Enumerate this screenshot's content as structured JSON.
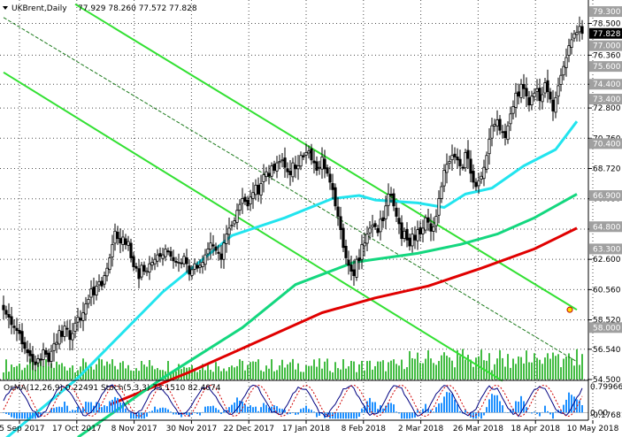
{
  "header": {
    "symbol": "UKBrent,Daily",
    "ohlc": "77.929 78.260 77.572 77.828"
  },
  "chart_data": {
    "type": "candlestick",
    "price_range": [
      54.5,
      79.96
    ],
    "price_ticks": [
      {
        "label": "78.500",
        "value": 78.5
      },
      {
        "label": "76.360",
        "value": 76.36
      },
      {
        "label": "74.400",
        "value": 74.4
      },
      {
        "label": "72.800",
        "value": 72.8
      },
      {
        "label": "70.760",
        "value": 70.76
      },
      {
        "label": "68.720",
        "value": 68.72
      },
      {
        "label": "66.680",
        "value": 66.68
      },
      {
        "label": "64.640",
        "value": 64.64
      },
      {
        "label": "62.600",
        "value": 62.6
      },
      {
        "label": "60.560",
        "value": 60.56
      },
      {
        "label": "58.520",
        "value": 58.52
      },
      {
        "label": "56.540",
        "value": 56.54
      },
      {
        "label": "54.500",
        "value": 54.5
      }
    ],
    "price_labels": [
      {
        "label": "79.300",
        "value": 79.3,
        "color": "#a0a0a0"
      },
      {
        "label": "77.828",
        "value": 77.828,
        "color": "#000000"
      },
      {
        "label": "77.000",
        "value": 77.0,
        "color": "#a0a0a0"
      },
      {
        "label": "75.600",
        "value": 75.6,
        "color": "#a0a0a0"
      },
      {
        "label": "74.400",
        "value": 74.4,
        "color": "#a0a0a0"
      },
      {
        "label": "73.400",
        "value": 73.4,
        "color": "#a0a0a0"
      },
      {
        "label": "70.400",
        "value": 70.4,
        "color": "#a0a0a0"
      },
      {
        "label": "66.900",
        "value": 66.9,
        "color": "#a0a0a0"
      },
      {
        "label": "64.800",
        "value": 64.8,
        "color": "#a0a0a0"
      },
      {
        "label": "63.300",
        "value": 63.3,
        "color": "#a0a0a0"
      },
      {
        "label": "58.000",
        "value": 58.0,
        "color": "#a0a0a0"
      }
    ],
    "x_labels": [
      "25 Sep 2017",
      "17 Oct 2017",
      "8 Nov 2017",
      "30 Nov 2017",
      "22 Dec 2017",
      "17 Jan 2018",
      "8 Feb 2018",
      "2 Mar 2018",
      "26 Mar 2018",
      "18 Apr 2018",
      "10 May 2018"
    ],
    "closes": [
      59.2,
      58.9,
      58.7,
      58.2,
      58.0,
      57.8,
      57.6,
      56.9,
      56.6,
      56.3,
      56.1,
      55.7,
      55.5,
      55.9,
      55.8,
      56.5,
      56.2,
      55.7,
      56.4,
      56.9,
      57.0,
      57.8,
      57.4,
      58.1,
      57.9,
      57.2,
      57.6,
      58.3,
      58.7,
      58.5,
      59.0,
      59.6,
      59.9,
      60.6,
      60.2,
      60.8,
      61.1,
      60.8,
      61.5,
      62.0,
      62.7,
      63.6,
      64.5,
      64.0,
      63.7,
      64.1,
      63.6,
      63.8,
      62.7,
      62.1,
      62.0,
      61.3,
      62.2,
      61.8,
      61.8,
      62.3,
      62.4,
      62.6,
      62.9,
      62.8,
      62.9,
      63.3,
      63.1,
      62.8,
      62.5,
      62.4,
      62.4,
      62.3,
      62.8,
      62.3,
      61.6,
      61.9,
      62.3,
      62.0,
      62.2,
      62.4,
      62.9,
      63.3,
      63.7,
      63.5,
      63.2,
      63.0,
      62.6,
      63.7,
      64.3,
      64.7,
      64.9,
      65.2,
      65.9,
      66.3,
      66.7,
      66.5,
      66.2,
      66.8,
      67.1,
      67.6,
      67.0,
      67.7,
      68.3,
      68.5,
      68.2,
      68.9,
      68.6,
      69.1,
      69.2,
      69.3,
      68.8,
      68.5,
      68.3,
      69.1,
      68.7,
      68.9,
      69.6,
      69.5,
      69.8,
      69.9,
      69.3,
      69.1,
      68.6,
      68.8,
      69.5,
      68.7,
      68.4,
      67.8,
      67.3,
      66.2,
      65.5,
      64.6,
      63.4,
      62.7,
      62.2,
      61.8,
      61.5,
      62.6,
      62.5,
      63.6,
      63.7,
      64.3,
      64.7,
      64.9,
      64.8,
      64.4,
      65.3,
      65.2,
      66.2,
      67.0,
      66.9,
      66.2,
      65.5,
      65.0,
      64.0,
      64.5,
      63.9,
      63.5,
      64.3,
      63.9,
      64.6,
      64.3,
      64.7,
      65.4,
      65.1,
      64.5,
      64.8,
      65.5,
      66.7,
      67.5,
      68.6,
      69.0,
      69.2,
      69.6,
      69.5,
      69.3,
      68.9,
      68.8,
      69.8,
      69.4,
      68.4,
      67.8,
      67.5,
      67.9,
      68.2,
      68.8,
      69.6,
      70.7,
      71.6,
      71.7,
      72.0,
      71.3,
      71.2,
      70.8,
      71.6,
      72.4,
      72.9,
      73.8,
      73.6,
      74.4,
      74.1,
      73.6,
      73.0,
      73.6,
      73.8,
      74.1,
      73.3,
      73.7,
      74.5,
      73.9,
      73.4,
      72.6,
      73.5,
      74.3,
      75.0,
      75.6,
      76.2,
      77.0,
      77.4,
      77.8,
      77.9,
      78.3,
      77.828
    ],
    "ma_fast": [
      {
        "bar": 0,
        "value": 50.4
      },
      {
        "bar": 28,
        "value": 54.6
      },
      {
        "bar": 60,
        "value": 60.4
      },
      {
        "bar": 86,
        "value": 64.2
      },
      {
        "bar": 106,
        "value": 65.4
      },
      {
        "bar": 124,
        "value": 66.7
      },
      {
        "bar": 134,
        "value": 66.9
      },
      {
        "bar": 140,
        "value": 66.6
      },
      {
        "bar": 156,
        "value": 66.4
      },
      {
        "bar": 166,
        "value": 66.1
      },
      {
        "bar": 174,
        "value": 67.0
      },
      {
        "bar": 184,
        "value": 67.4
      },
      {
        "bar": 196,
        "value": 68.9
      },
      {
        "bar": 208,
        "value": 70.0
      },
      {
        "bar": 216,
        "value": 71.9
      }
    ],
    "ma_mid": [
      {
        "bar": 28,
        "value": 50.6
      },
      {
        "bar": 60,
        "value": 54.6
      },
      {
        "bar": 90,
        "value": 58.0
      },
      {
        "bar": 110,
        "value": 60.9
      },
      {
        "bar": 132,
        "value": 62.4
      },
      {
        "bar": 156,
        "value": 63.0
      },
      {
        "bar": 172,
        "value": 63.6
      },
      {
        "bar": 186,
        "value": 64.3
      },
      {
        "bar": 200,
        "value": 65.4
      },
      {
        "bar": 216,
        "value": 67.0
      }
    ],
    "ma_slow": [
      {
        "bar": 40,
        "value": 52.8
      },
      {
        "bar": 70,
        "value": 55.0
      },
      {
        "bar": 100,
        "value": 57.4
      },
      {
        "bar": 120,
        "value": 59.0
      },
      {
        "bar": 140,
        "value": 60.0
      },
      {
        "bar": 160,
        "value": 60.8
      },
      {
        "bar": 180,
        "value": 62.0
      },
      {
        "bar": 200,
        "value": 63.3
      },
      {
        "bar": 216,
        "value": 64.7
      }
    ],
    "channel_lines": [
      {
        "kind": "solid",
        "p1": {
          "bar": 0,
          "value": 75.2
        },
        "p2": {
          "bar": 188,
          "value": 54.4
        }
      },
      {
        "kind": "solid",
        "p1": {
          "bar": 27,
          "value": 79.8
        },
        "p2": {
          "bar": 216,
          "value": 59.2
        }
      },
      {
        "kind": "dashed",
        "p1": {
          "bar": 0,
          "value": 78.9
        },
        "p2": {
          "bar": 216,
          "value": 55.7
        }
      }
    ],
    "oscillator": {
      "label": "OsMA(12,26,9) 0.22491  Stoch(5,3,3) 73.1510 82.4074",
      "ticks": [
        {
          "label": "0.79966",
          "value": 0.79966
        },
        {
          "label": "0.00",
          "value": 0.0
        },
        {
          "label": "-0.17681",
          "value": -0.17681
        }
      ]
    }
  }
}
